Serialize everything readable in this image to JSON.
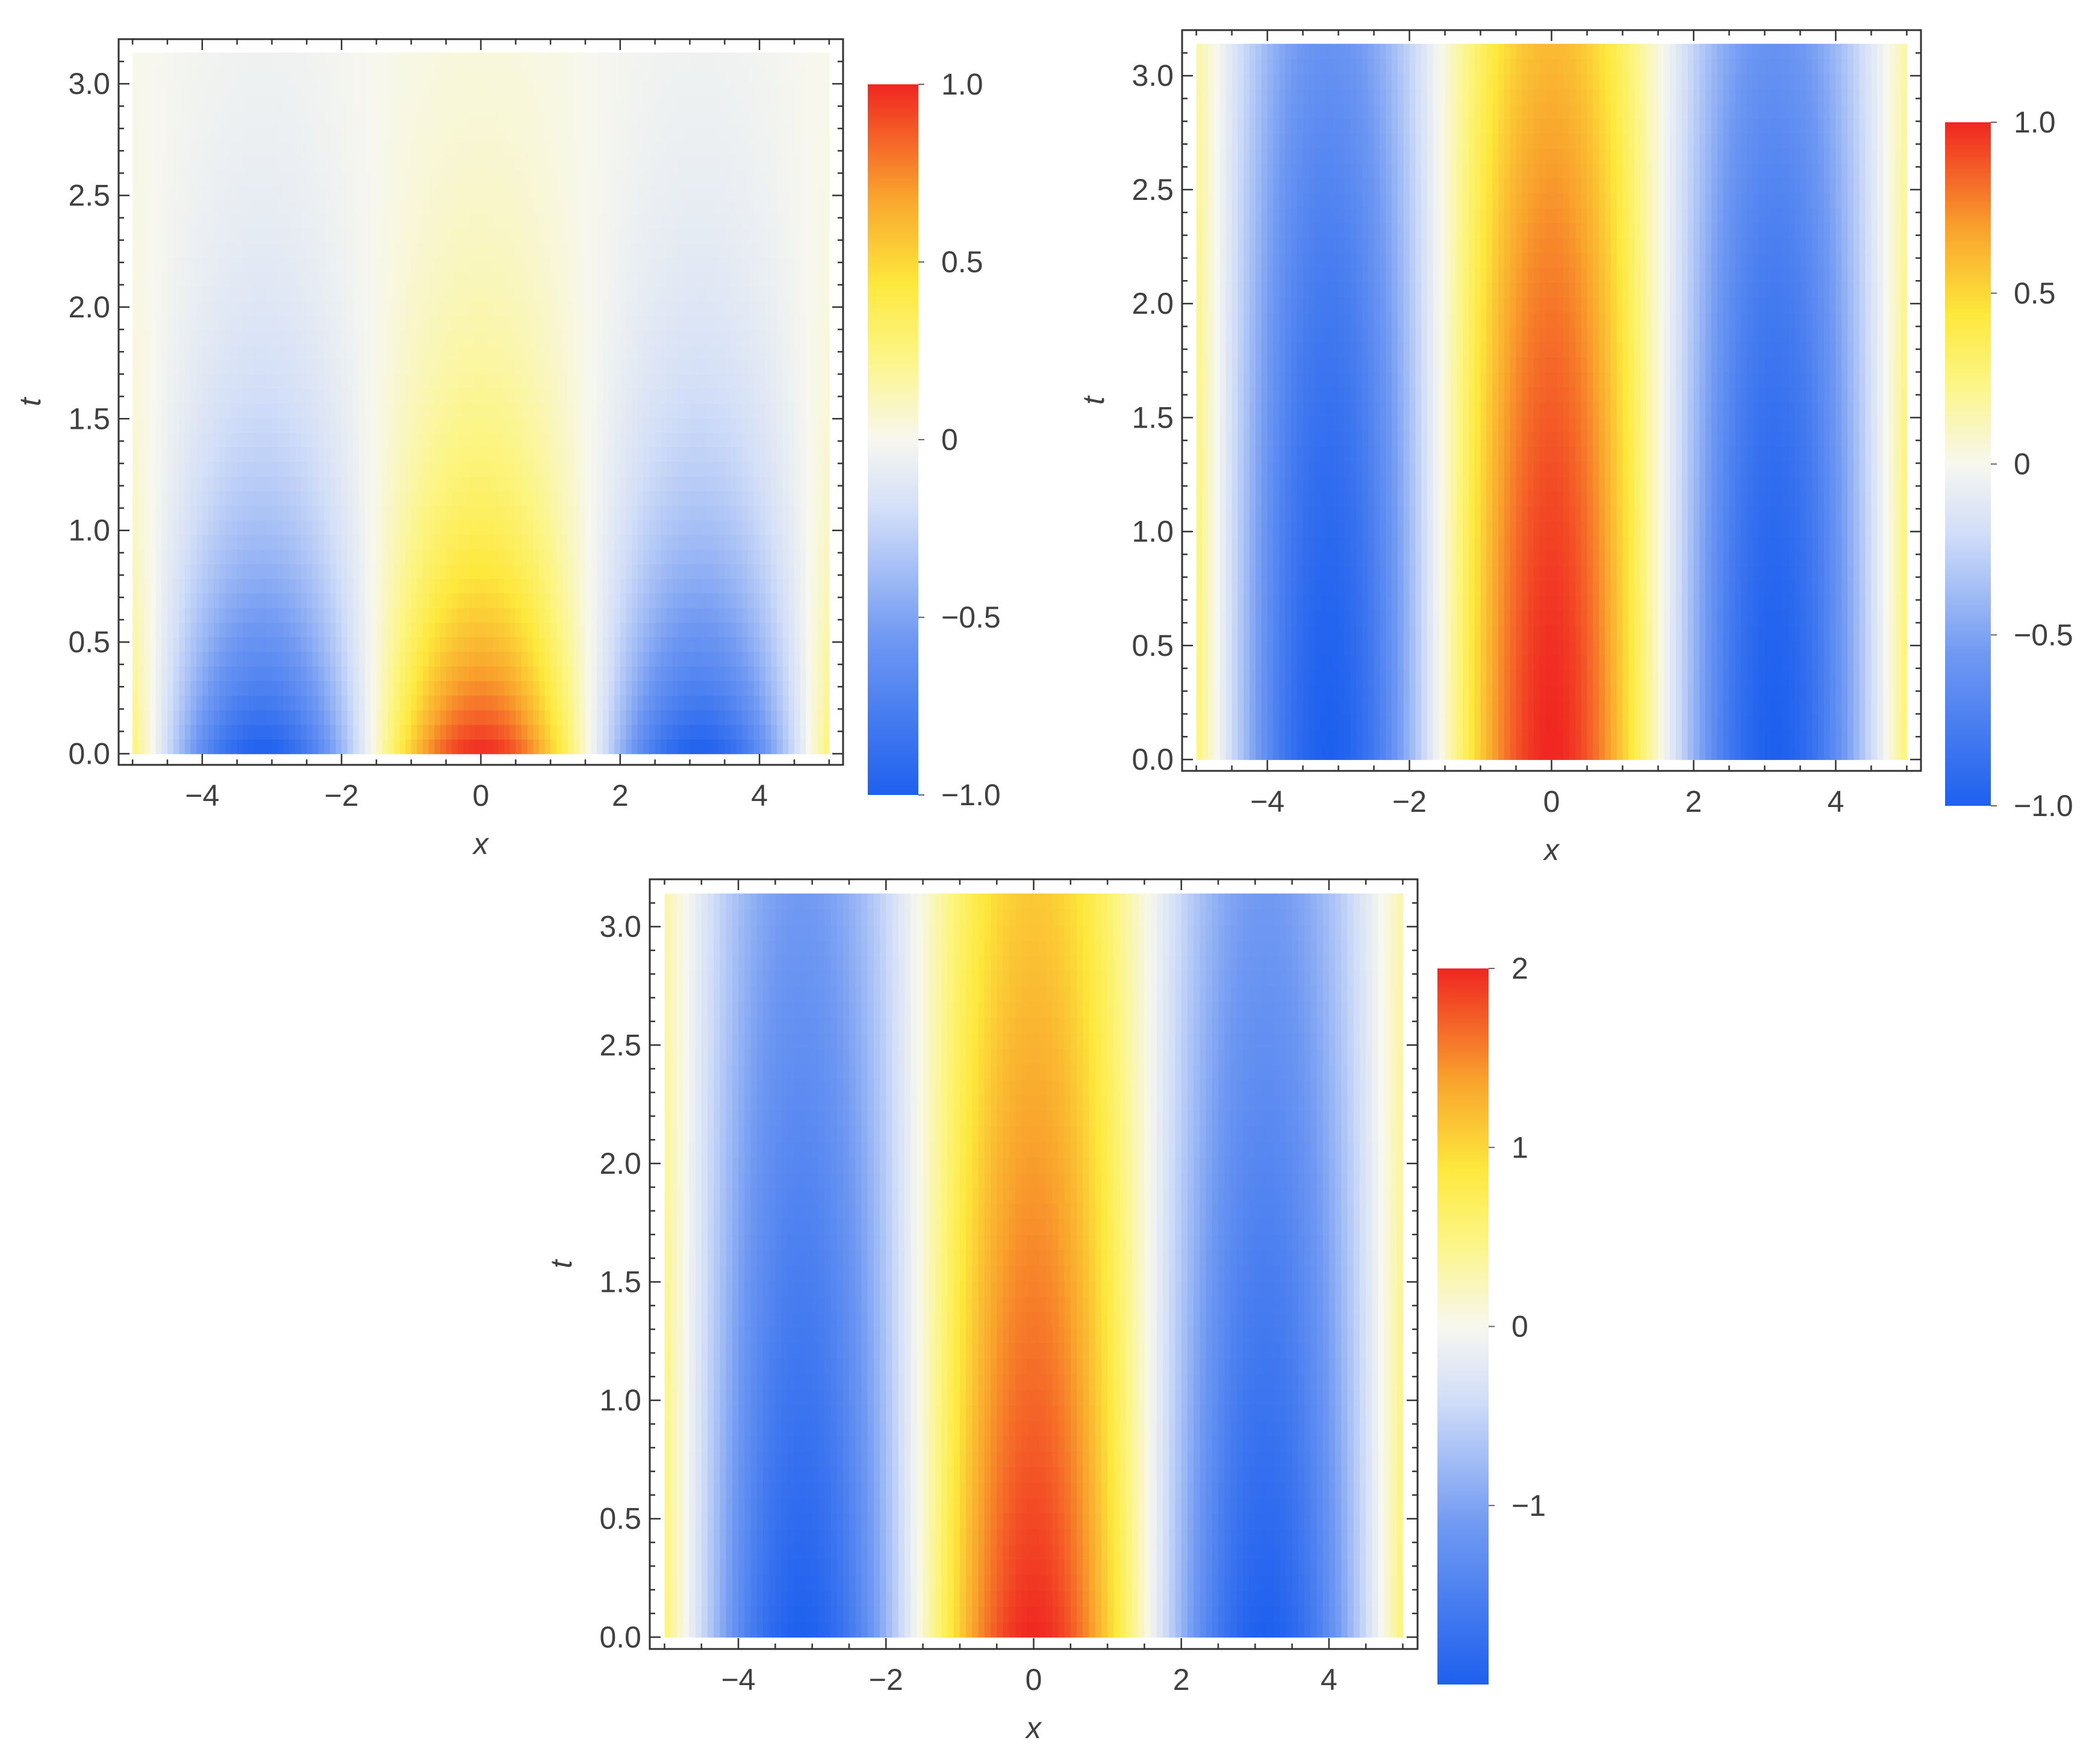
{
  "figure": {
    "colormap": {
      "low": "#1e60ee",
      "mid": "#f7f7ef",
      "high": "#f02622",
      "stops": [
        [
          0.0,
          "#1e60ee"
        ],
        [
          0.22,
          "#6f98f2"
        ],
        [
          0.4,
          "#d2def8"
        ],
        [
          0.5,
          "#f7f7ef"
        ],
        [
          0.62,
          "#fcf583"
        ],
        [
          0.72,
          "#fde83c"
        ],
        [
          0.84,
          "#f9a52d"
        ],
        [
          1.0,
          "#f02622"
        ]
      ]
    }
  },
  "chart_data": [
    {
      "type": "heatmap",
      "title": "",
      "xlabel": "x",
      "ylabel": "t",
      "xlim": [
        -5.2,
        5.2
      ],
      "ylim": [
        -0.05,
        3.2
      ],
      "x_ticks": [
        -4,
        -2,
        0,
        2,
        4
      ],
      "x_tick_labels": [
        "−4",
        "−2",
        "0",
        "2",
        "4"
      ],
      "y_ticks": [
        0.0,
        0.5,
        1.0,
        1.5,
        2.0,
        2.5,
        3.0
      ],
      "y_tick_labels": [
        "0.0",
        "0.5",
        "1.0",
        "1.5",
        "2.0",
        "2.5",
        "3.0"
      ],
      "field": {
        "x_range": [
          -5,
          5
        ],
        "t_range": [
          0,
          3.14
        ],
        "expression": "u(x,t) = cos(x) * exp(-t)"
      },
      "colorbar": {
        "range": [
          -1,
          1
        ],
        "ticks": [
          1.0,
          0.5,
          0,
          -0.5,
          -1.0
        ],
        "tick_labels": [
          "1.0",
          "0.5",
          "0",
          "−0.5",
          "−1.0"
        ]
      }
    },
    {
      "type": "heatmap",
      "title": "",
      "xlabel": "x",
      "ylabel": "t",
      "xlim": [
        -5.2,
        5.2
      ],
      "ylim": [
        -0.05,
        3.2
      ],
      "x_ticks": [
        -4,
        -2,
        0,
        2,
        4
      ],
      "x_tick_labels": [
        "−4",
        "−2",
        "0",
        "2",
        "4"
      ],
      "y_ticks": [
        0.0,
        0.5,
        1.0,
        1.5,
        2.0,
        2.5,
        3.0
      ],
      "y_tick_labels": [
        "0.0",
        "0.5",
        "1.0",
        "1.5",
        "2.0",
        "2.5",
        "3.0"
      ],
      "field": {
        "x_range": [
          -5,
          5
        ],
        "t_range": [
          0,
          3.14
        ],
        "expression": "u(x,t) = cos(x) * (1 - 0.4 * (t / 3.14)^1.5)"
      },
      "colorbar": {
        "range": [
          -1,
          1
        ],
        "ticks": [
          1.0,
          0.5,
          0,
          -0.5,
          -1.0
        ],
        "tick_labels": [
          "1.0",
          "0.5",
          "0",
          "−0.5",
          "−1.0"
        ]
      }
    },
    {
      "type": "heatmap",
      "title": "",
      "xlabel": "x",
      "ylabel": "t",
      "xlim": [
        -5.2,
        5.2
      ],
      "ylim": [
        -0.05,
        3.2
      ],
      "x_ticks": [
        -4,
        -2,
        0,
        2,
        4
      ],
      "x_tick_labels": [
        "−4",
        "−2",
        "0",
        "2",
        "4"
      ],
      "y_ticks": [
        0.0,
        0.5,
        1.0,
        1.5,
        2.0,
        2.5,
        3.0
      ],
      "y_tick_labels": [
        "0.0",
        "0.5",
        "1.0",
        "1.5",
        "2.0",
        "2.5",
        "3.0"
      ],
      "field": {
        "x_range": [
          -5,
          5
        ],
        "t_range": [
          0,
          3.14
        ],
        "expression": "u(x,t) = 2 * cos(x) * (1 - 0.45 * (t / 3.14)^0.9)"
      },
      "colorbar": {
        "range": [
          -2,
          2
        ],
        "ticks": [
          2,
          1,
          0,
          -1
        ],
        "tick_labels": [
          "2",
          "1",
          "0",
          "−1"
        ]
      }
    }
  ]
}
